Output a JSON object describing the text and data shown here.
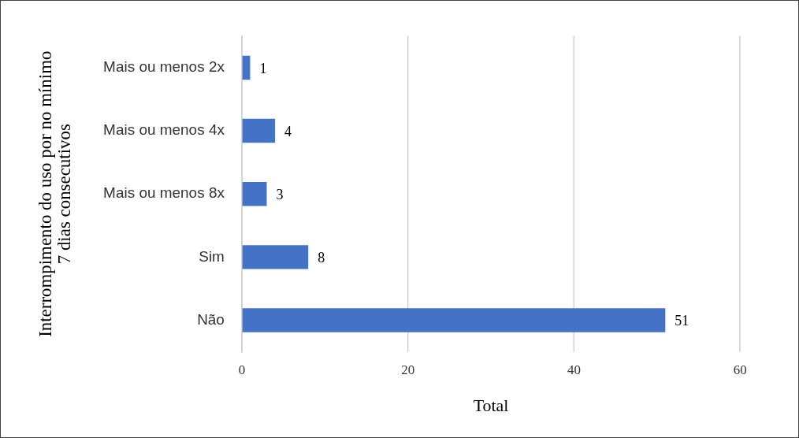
{
  "chart_data": {
    "type": "bar",
    "orientation": "horizontal",
    "xlabel": "Total",
    "ylabel": "Interrompimento do uso por no mínimo 7 dias consecutivos",
    "categories": [
      "Mais ou menos 2x",
      "Mais ou menos 4x",
      "Mais ou menos 8x",
      "Sim",
      "Não"
    ],
    "values": [
      1,
      4,
      3,
      8,
      51
    ],
    "color": "#4472c4",
    "xlim": [
      0,
      60
    ],
    "xticks": [
      0,
      20,
      40,
      60
    ],
    "grid": "x",
    "data_labels": true
  }
}
